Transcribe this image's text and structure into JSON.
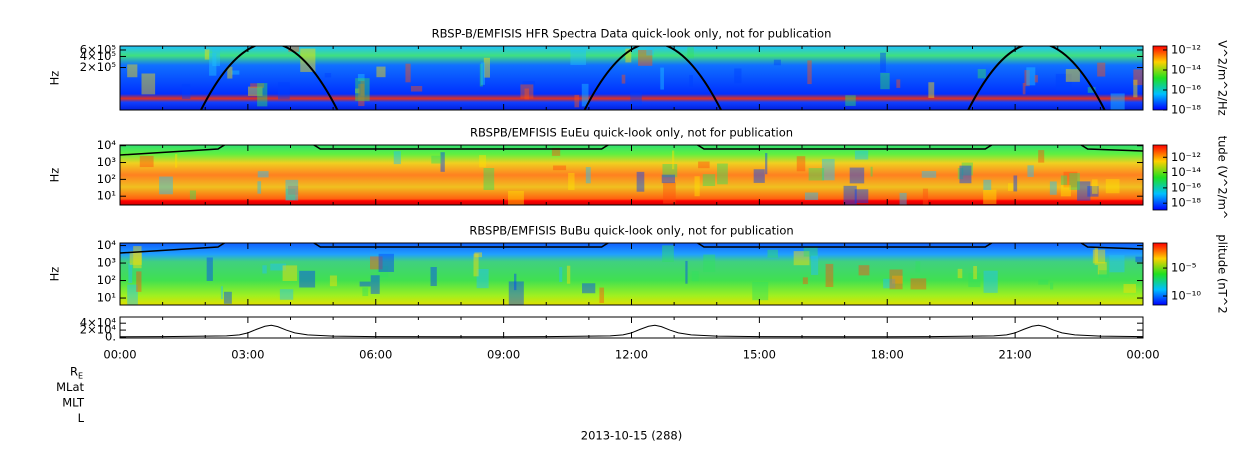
{
  "chart_data": [
    {
      "type": "spectrogram",
      "title": "RBSP-B/EMFISIS  HFR Spectra Data quick-look only, not for publication",
      "ylabel": "Hz",
      "ylog": true,
      "ylim": [
        14000,
        770000
      ],
      "yticks": [
        {
          "value": 200000,
          "label": "2×10⁵"
        },
        {
          "value": 400000,
          "label": "4×10⁵"
        },
        {
          "value": 600000,
          "label": "6×10⁵"
        }
      ],
      "colorbar": {
        "label": "V^2/m^2/Hz",
        "log": true,
        "lim": [
          1e-18,
          2.5e-12
        ],
        "ticks": [
          {
            "value": 1e-12,
            "label": "10⁻¹²"
          },
          {
            "value": 1e-14,
            "label": "10⁻¹⁴"
          },
          {
            "value": 1e-16,
            "label": "10⁻¹⁶"
          },
          {
            "value": 1e-18,
            "label": "10⁻¹⁸"
          }
        ]
      }
    },
    {
      "type": "spectrogram",
      "title": "RBSPB/EMFISIS  EuEu quick-look only, not for publication",
      "ylabel": "Hz",
      "ylog": true,
      "ylim": [
        3,
        11000
      ],
      "yticks": [
        {
          "value": 10,
          "label": "10¹"
        },
        {
          "value": 100,
          "label": "10²"
        },
        {
          "value": 1000,
          "label": "10³"
        },
        {
          "value": 10000,
          "label": "10⁴"
        }
      ],
      "colorbar": {
        "label": "tude (V^2/m^",
        "log": true,
        "lim": [
          1.3e-19,
          4e-11
        ],
        "ticks": [
          {
            "value": 1e-12,
            "label": "10⁻¹²"
          },
          {
            "value": 1e-14,
            "label": "10⁻¹⁴"
          },
          {
            "value": 1e-16,
            "label": "10⁻¹⁶"
          },
          {
            "value": 1e-18,
            "label": "10⁻¹⁸"
          }
        ]
      }
    },
    {
      "type": "spectrogram",
      "title": "RBSPB/EMFISIS  BuBu quick-look only, not for publication",
      "ylabel": "Hz",
      "ylog": true,
      "ylim": [
        4,
        14000
      ],
      "yticks": [
        {
          "value": 10,
          "label": "10¹"
        },
        {
          "value": 100,
          "label": "10²"
        },
        {
          "value": 1000,
          "label": "10³"
        },
        {
          "value": 10000,
          "label": "10⁴"
        }
      ],
      "colorbar": {
        "label": "plitude (nT^2",
        "log": true,
        "lim": [
          2.5e-12,
          0.3
        ],
        "ticks": [
          {
            "value": 1e-05,
            "label": "10⁻⁵"
          },
          {
            "value": 1e-10,
            "label": "10⁻¹⁰"
          }
        ]
      }
    },
    {
      "type": "line",
      "color": "#000000",
      "ylim": [
        -3000,
        58000
      ],
      "yticks": [
        {
          "value": 0,
          "label": "0."
        },
        {
          "value": 20000,
          "label": "2×10⁴"
        },
        {
          "value": 40000,
          "label": "4×10⁴"
        }
      ],
      "x": [
        0,
        1,
        2,
        2.5,
        2.8,
        3.0,
        3.2,
        3.4,
        3.55,
        3.7,
        3.9,
        4.1,
        4.4,
        5,
        6,
        8,
        10,
        11,
        11.5,
        11.8,
        12.0,
        12.2,
        12.4,
        12.55,
        12.7,
        12.9,
        13.1,
        13.4,
        14,
        15,
        17,
        19,
        20,
        20.5,
        20.8,
        21.0,
        21.2,
        21.4,
        21.55,
        21.7,
        21.9,
        22.1,
        22.4,
        23,
        24
      ],
      "values": [
        500,
        1000,
        2500,
        3000,
        6000,
        12000,
        22000,
        31000,
        34000,
        30000,
        20000,
        12000,
        6000,
        2500,
        1000,
        500,
        1000,
        2500,
        3000,
        6000,
        12000,
        22000,
        31000,
        34000,
        30000,
        20000,
        12000,
        6000,
        2500,
        1000,
        500,
        1000,
        2500,
        3000,
        6000,
        12000,
        22000,
        31000,
        34000,
        30000,
        20000,
        12000,
        6000,
        2500,
        1000
      ],
      "xlim": [
        0,
        24
      ],
      "xticks": [
        {
          "value": 0,
          "label": "00:00"
        },
        {
          "value": 3,
          "label": "03:00"
        },
        {
          "value": 6,
          "label": "06:00"
        },
        {
          "value": 9,
          "label": "09:00"
        },
        {
          "value": 12,
          "label": "12:00"
        },
        {
          "value": 15,
          "label": "15:00"
        },
        {
          "value": 18,
          "label": "18:00"
        },
        {
          "value": 21,
          "label": "21:00"
        },
        {
          "value": 24,
          "label": "00:00"
        }
      ],
      "xminorticks": [
        1,
        2,
        4,
        5,
        7,
        8,
        10,
        11,
        13,
        14,
        16,
        17,
        19,
        20,
        22,
        23
      ],
      "xlabel": "2013-10-15 (288)",
      "ephemeris_labels": [
        {
          "text": "R",
          "sub": "E"
        },
        "MLat",
        "MLT",
        "L"
      ]
    }
  ]
}
